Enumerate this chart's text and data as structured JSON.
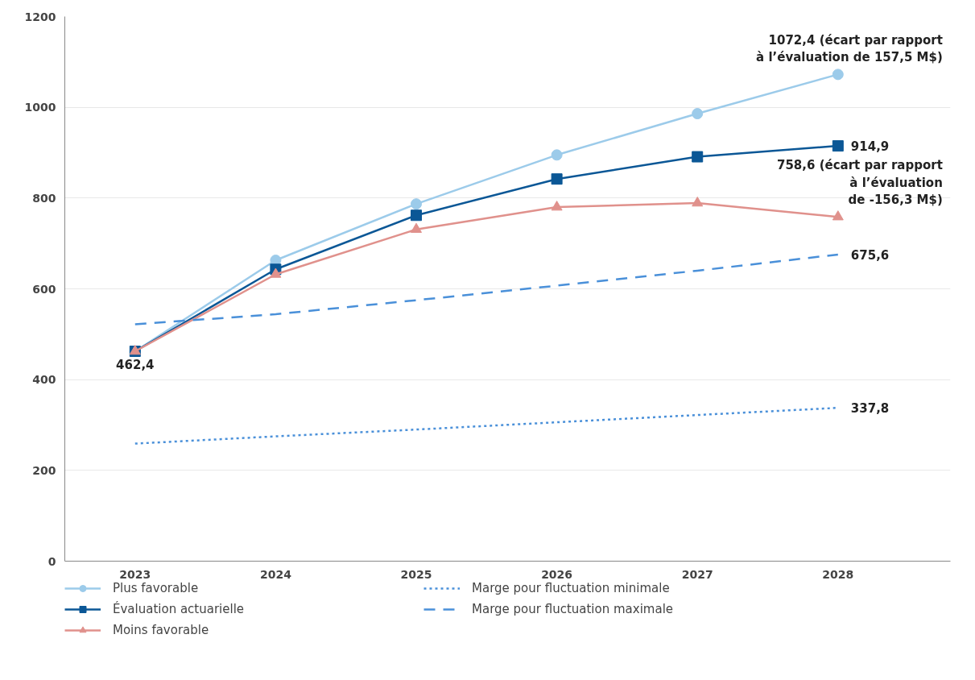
{
  "chart_data": {
    "type": "line",
    "categories": [
      "2023",
      "2024",
      "2025",
      "2026",
      "2027",
      "2028"
    ],
    "series": [
      {
        "name": "Plus favorable",
        "color": "#9ccbea",
        "marker": "circle",
        "line_style": "solid",
        "values": [
          462.4,
          663,
          787,
          895,
          986,
          1072.4
        ]
      },
      {
        "name": "Évaluation actuarielle",
        "color": "#0b5796",
        "marker": "square",
        "line_style": "solid",
        "values": [
          462.4,
          643,
          762,
          842,
          891,
          914.9
        ]
      },
      {
        "name": "Moins favorable",
        "color": "#e0918c",
        "marker": "triangle",
        "line_style": "solid",
        "values": [
          462.4,
          632,
          731,
          780,
          789,
          758.6
        ]
      },
      {
        "name": "Marge pour fluctuation minimale",
        "color": "#4a90d9",
        "marker": "none",
        "line_style": "dotted",
        "values": [
          259,
          275,
          290,
          306,
          322,
          337.8
        ]
      },
      {
        "name": "Marge pour fluctuation maximale",
        "color": "#4a90d9",
        "marker": "none",
        "line_style": "dashed",
        "values": [
          522,
          544,
          575,
          607,
          640,
          675.6
        ]
      }
    ],
    "ylim": [
      0,
      1200
    ],
    "yticks": [
      0,
      200,
      400,
      600,
      800,
      1000,
      1200
    ],
    "grid": "y",
    "legend": "bottom",
    "annotations": [
      {
        "text": "462,4",
        "x": "2023",
        "y": 462.4
      },
      {
        "text": "1072,4 (écart par rapport\nà l’évaluation de 157,5 M$)",
        "x": "2028",
        "y": 1072.4
      },
      {
        "text": "914,9",
        "x": "2028",
        "y": 914.9
      },
      {
        "text": "758,6 (écart par rapport\nà l’évaluation\nde -156,3 M$)",
        "x": "2028",
        "y": 758.6
      },
      {
        "text": "675,6",
        "x": "2028",
        "y": 675.6
      },
      {
        "text": "337,8",
        "x": "2028",
        "y": 337.8
      }
    ]
  }
}
